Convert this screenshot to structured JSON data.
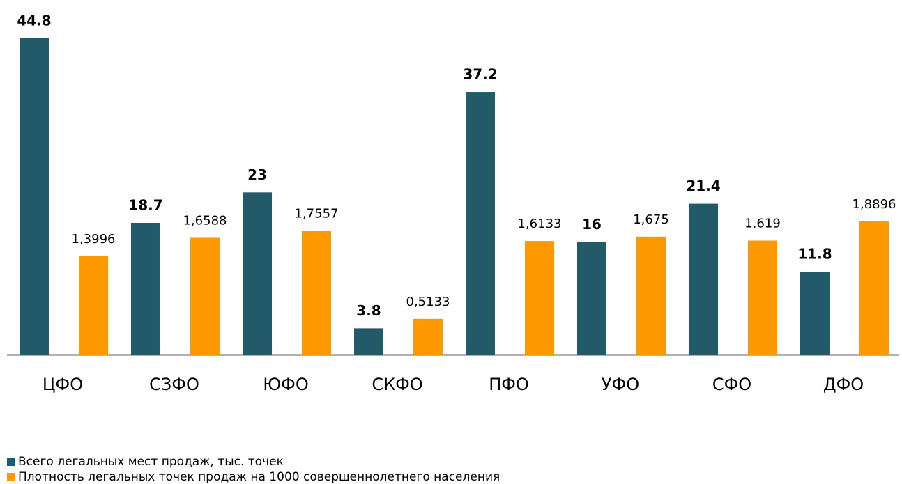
{
  "chart_data": {
    "type": "bar",
    "categories": [
      "ЦФО",
      "СЗФО",
      "ЮФО",
      "СКФО",
      "ПФО",
      "УФО",
      "СФО",
      "ДФО"
    ],
    "series": [
      {
        "name": "Всего легальных мест продаж, тыс. точек",
        "color": "#235a6a",
        "values": [
          44.8,
          18.7,
          23,
          3.8,
          37.2,
          16,
          21.4,
          11.8
        ]
      },
      {
        "name": "Плотность легальных точек продаж на 1000 совершеннолетнего населения",
        "color": "#ff9900",
        "axis": "y2",
        "values": [
          1.3996,
          1.6588,
          1.7557,
          0.5133,
          1.6133,
          1.675,
          1.619,
          1.8896
        ],
        "value_labels": [
          "1,3996",
          "1,6588",
          "1,7557",
          "0,5133",
          "1,6133",
          "1,675",
          "1,619",
          "1,8896"
        ]
      }
    ],
    "ylim": [
      0,
      50
    ],
    "y2lim": [
      0,
      5
    ],
    "legend": "bottom-left"
  }
}
